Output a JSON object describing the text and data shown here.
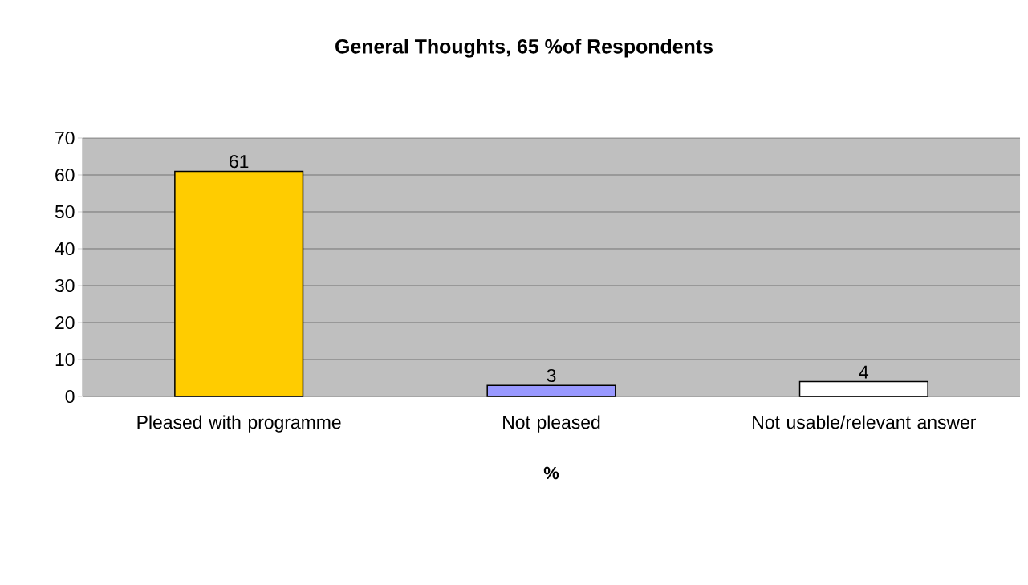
{
  "chart_data": {
    "type": "bar",
    "title": "General Thoughts, 65 %of Respondents",
    "xlabel": "%",
    "categories": [
      "Pleased with programme",
      "Not pleased",
      "Not usable/relevant answer"
    ],
    "values": [
      61,
      3,
      4
    ],
    "colors": [
      "#ffcc00",
      "#9999ff",
      "#ffffff"
    ],
    "ylim": [
      0,
      70
    ],
    "yticks": [
      0,
      10,
      20,
      30,
      40,
      50,
      60,
      70
    ],
    "grid": "y",
    "data_labels": true
  }
}
